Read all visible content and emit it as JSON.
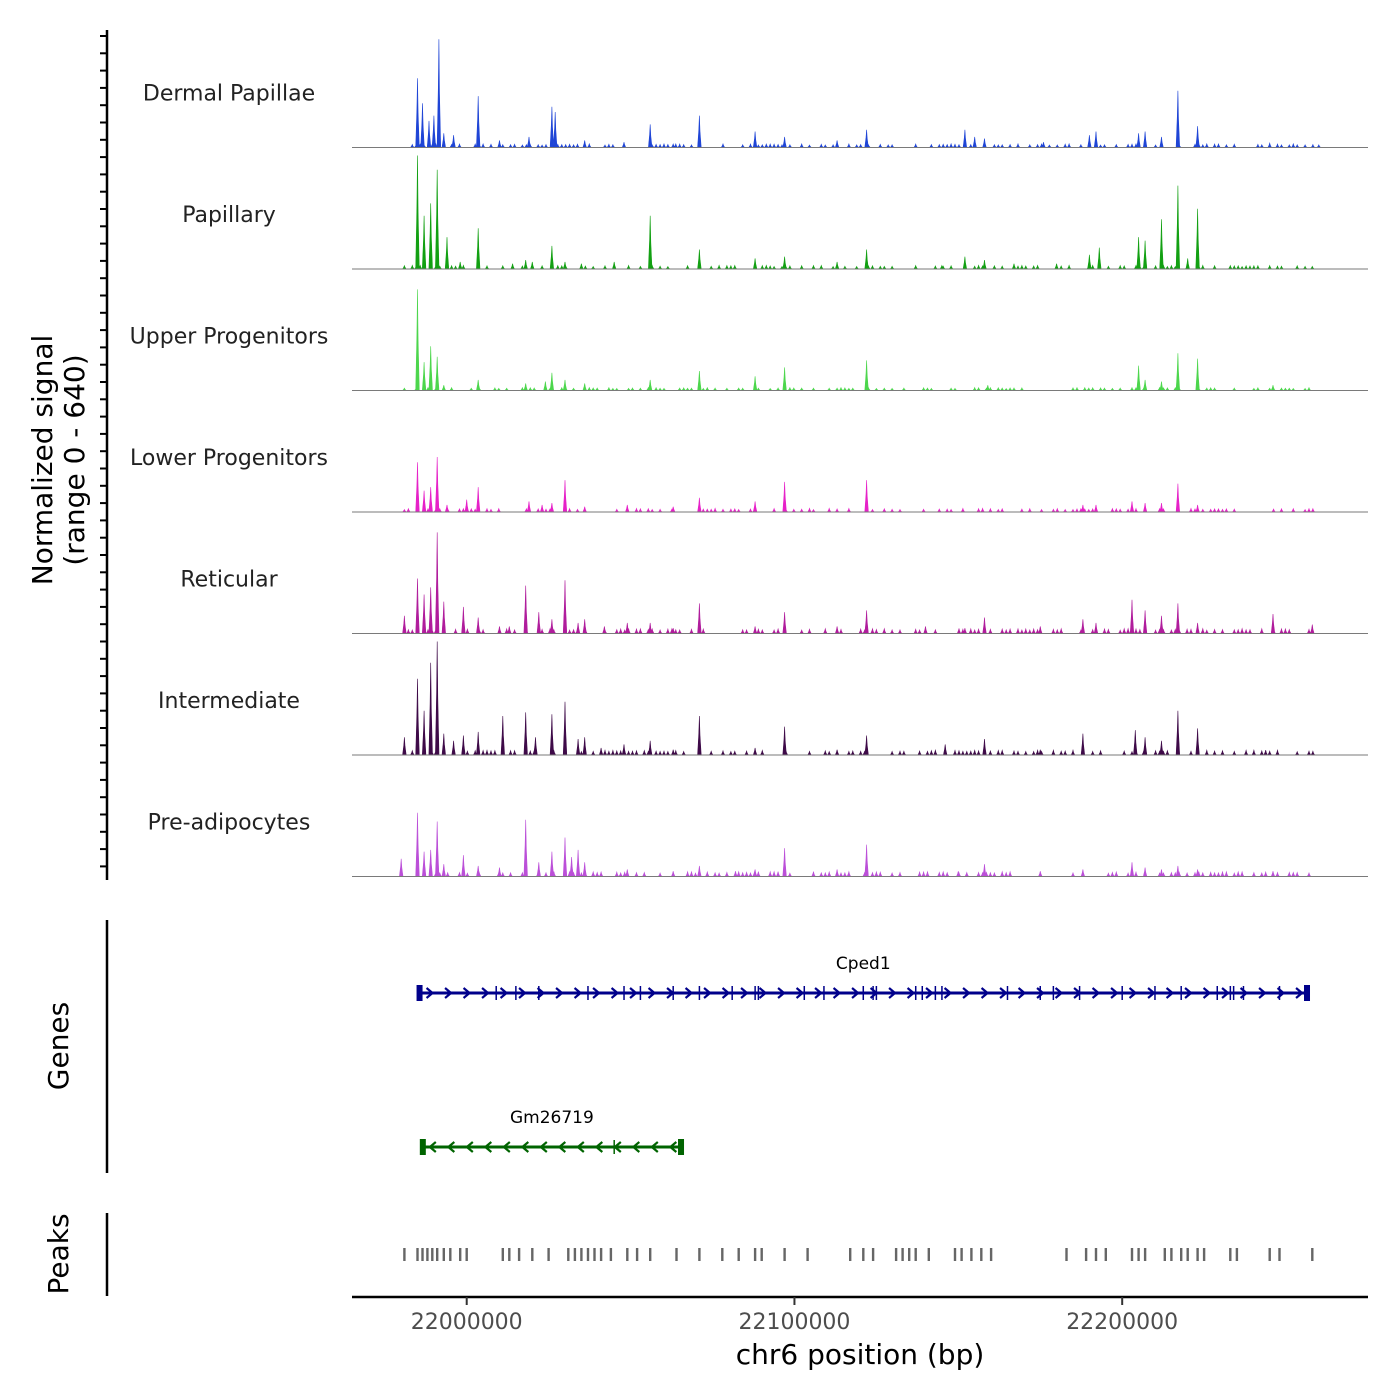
{
  "chart_data": {
    "type": "coverage",
    "chromosome": "chr6",
    "x_range": [
      21965000,
      22275000
    ],
    "xlabel": "chr6 position (bp)",
    "x_ticks": [
      {
        "value": 22000000,
        "label": "22000000"
      },
      {
        "value": 22100000,
        "label": "22100000"
      },
      {
        "value": 22200000,
        "label": "22200000"
      }
    ],
    "coverage": {
      "ylabel": "Normalized signal",
      "ylabel_range": "(range 0 - 640)",
      "y_range": [
        0,
        640
      ],
      "series": [
        {
          "name": "Dermal Papillae",
          "color": "#1f45d6",
          "baseline": 15,
          "peaks": [
            [
              21985000,
              390
            ],
            [
              21986500,
              250
            ],
            [
              21988500,
              150
            ],
            [
              21990000,
              180
            ],
            [
              21991500,
              610
            ],
            [
              21993000,
              80
            ],
            [
              21996000,
              70
            ],
            [
              22003500,
              290
            ],
            [
              22010000,
              40
            ],
            [
              22019000,
              60
            ],
            [
              22026000,
              230
            ],
            [
              22027000,
              200
            ],
            [
              22036000,
              40
            ],
            [
              22048000,
              30
            ],
            [
              22056000,
              130
            ],
            [
              22063000,
              20
            ],
            [
              22071000,
              180
            ],
            [
              22088000,
              90
            ],
            [
              22097000,
              60
            ],
            [
              22113000,
              40
            ],
            [
              22122000,
              100
            ],
            [
              22152000,
              100
            ],
            [
              22155000,
              60
            ],
            [
              22158000,
              50
            ],
            [
              22176000,
              30
            ],
            [
              22190000,
              70
            ],
            [
              22192000,
              90
            ],
            [
              22205000,
              80
            ],
            [
              22207000,
              90
            ],
            [
              22212000,
              60
            ],
            [
              22217000,
              320
            ],
            [
              22223000,
              120
            ],
            [
              22245000,
              25
            ],
            [
              22260000,
              15
            ]
          ]
        },
        {
          "name": "Papillary",
          "color": "#12a012",
          "baseline": 15,
          "peaks": [
            [
              21985000,
              640
            ],
            [
              21987000,
              300
            ],
            [
              21989000,
              370
            ],
            [
              21991000,
              560
            ],
            [
              21994000,
              180
            ],
            [
              21998000,
              40
            ],
            [
              22003500,
              230
            ],
            [
              22014000,
              30
            ],
            [
              22018000,
              50
            ],
            [
              22020000,
              40
            ],
            [
              22026000,
              130
            ],
            [
              22030000,
              40
            ],
            [
              22035000,
              30
            ],
            [
              22045000,
              40
            ],
            [
              22056000,
              300
            ],
            [
              22071000,
              110
            ],
            [
              22088000,
              60
            ],
            [
              22097000,
              70
            ],
            [
              22113000,
              40
            ],
            [
              22122000,
              110
            ],
            [
              22137000,
              20
            ],
            [
              22145000,
              20
            ],
            [
              22152000,
              70
            ],
            [
              22158000,
              50
            ],
            [
              22167000,
              30
            ],
            [
              22180000,
              30
            ],
            [
              22190000,
              80
            ],
            [
              22193000,
              120
            ],
            [
              22205000,
              180
            ],
            [
              22207000,
              160
            ],
            [
              22212000,
              280
            ],
            [
              22217000,
              470
            ],
            [
              22220000,
              60
            ],
            [
              22223000,
              340
            ],
            [
              22233000,
              20
            ],
            [
              22245000,
              20
            ],
            [
              22258000,
              15
            ]
          ]
        },
        {
          "name": "Upper Progenitors",
          "color": "#4cd64c",
          "baseline": 12,
          "peaks": [
            [
              21985000,
              570
            ],
            [
              21987000,
              160
            ],
            [
              21989000,
              250
            ],
            [
              21991000,
              190
            ],
            [
              21993000,
              30
            ],
            [
              22003500,
              60
            ],
            [
              22018000,
              40
            ],
            [
              22024000,
              50
            ],
            [
              22026000,
              100
            ],
            [
              22030000,
              60
            ],
            [
              22036000,
              40
            ],
            [
              22056000,
              60
            ],
            [
              22071000,
              110
            ],
            [
              22088000,
              80
            ],
            [
              22097000,
              130
            ],
            [
              22122000,
              170
            ],
            [
              22159000,
              30
            ],
            [
              22205000,
              140
            ],
            [
              22207000,
              60
            ],
            [
              22212000,
              50
            ],
            [
              22217000,
              210
            ],
            [
              22223000,
              180
            ],
            [
              22246000,
              30
            ]
          ]
        },
        {
          "name": "Lower Progenitors",
          "color": "#e621c8",
          "baseline": 15,
          "peaks": [
            [
              21985000,
              280
            ],
            [
              21987000,
              120
            ],
            [
              21989000,
              140
            ],
            [
              21991000,
              310
            ],
            [
              21994000,
              40
            ],
            [
              22000000,
              70
            ],
            [
              22003500,
              140
            ],
            [
              22019000,
              60
            ],
            [
              22023000,
              40
            ],
            [
              22026000,
              50
            ],
            [
              22030000,
              180
            ],
            [
              22036000,
              30
            ],
            [
              22049000,
              40
            ],
            [
              22063000,
              30
            ],
            [
              22071000,
              80
            ],
            [
              22088000,
              60
            ],
            [
              22097000,
              170
            ],
            [
              22122000,
              180
            ],
            [
              22188000,
              40
            ],
            [
              22192000,
              40
            ],
            [
              22203000,
              60
            ],
            [
              22207000,
              50
            ],
            [
              22212000,
              50
            ],
            [
              22217000,
              160
            ],
            [
              22223000,
              40
            ]
          ]
        },
        {
          "name": "Reticular",
          "color": "#b01c9c",
          "baseline": 20,
          "peaks": [
            [
              21981000,
              100
            ],
            [
              21985000,
              310
            ],
            [
              21987000,
              220
            ],
            [
              21989000,
              260
            ],
            [
              21991000,
              570
            ],
            [
              21993000,
              180
            ],
            [
              21999000,
              150
            ],
            [
              22003500,
              90
            ],
            [
              22010000,
              40
            ],
            [
              22013000,
              40
            ],
            [
              22018000,
              270
            ],
            [
              22022000,
              120
            ],
            [
              22026000,
              80
            ],
            [
              22030000,
              300
            ],
            [
              22034000,
              60
            ],
            [
              22036000,
              80
            ],
            [
              22042000,
              40
            ],
            [
              22049000,
              60
            ],
            [
              22056000,
              60
            ],
            [
              22063000,
              30
            ],
            [
              22071000,
              170
            ],
            [
              22088000,
              40
            ],
            [
              22097000,
              120
            ],
            [
              22113000,
              40
            ],
            [
              22122000,
              130
            ],
            [
              22140000,
              40
            ],
            [
              22152000,
              30
            ],
            [
              22158000,
              90
            ],
            [
              22175000,
              40
            ],
            [
              22188000,
              80
            ],
            [
              22192000,
              60
            ],
            [
              22203000,
              190
            ],
            [
              22207000,
              130
            ],
            [
              22212000,
              100
            ],
            [
              22217000,
              170
            ],
            [
              22223000,
              60
            ],
            [
              22246000,
              110
            ],
            [
              22258000,
              50
            ]
          ]
        },
        {
          "name": "Intermediate",
          "color": "#3e0a48",
          "baseline": 20,
          "peaks": [
            [
              21981000,
              100
            ],
            [
              21985000,
              430
            ],
            [
              21987000,
              250
            ],
            [
              21989000,
              520
            ],
            [
              21991000,
              640
            ],
            [
              21993000,
              120
            ],
            [
              21996000,
              80
            ],
            [
              21999000,
              110
            ],
            [
              22003500,
              130
            ],
            [
              22011000,
              220
            ],
            [
              22018000,
              240
            ],
            [
              22021000,
              100
            ],
            [
              22026000,
              230
            ],
            [
              22030000,
              300
            ],
            [
              22034000,
              90
            ],
            [
              22036000,
              100
            ],
            [
              22041000,
              40
            ],
            [
              22048000,
              60
            ],
            [
              22056000,
              80
            ],
            [
              22063000,
              30
            ],
            [
              22071000,
              220
            ],
            [
              22088000,
              40
            ],
            [
              22097000,
              160
            ],
            [
              22113000,
              30
            ],
            [
              22122000,
              110
            ],
            [
              22146000,
              60
            ],
            [
              22158000,
              90
            ],
            [
              22175000,
              30
            ],
            [
              22188000,
              120
            ],
            [
              22204000,
              140
            ],
            [
              22207000,
              100
            ],
            [
              22212000,
              80
            ],
            [
              22217000,
              250
            ],
            [
              22223000,
              150
            ]
          ]
        },
        {
          "name": "Pre-adipocytes",
          "color": "#bb4fd8",
          "baseline": 20,
          "peaks": [
            [
              21980000,
              100
            ],
            [
              21985000,
              360
            ],
            [
              21987000,
              140
            ],
            [
              21989000,
              150
            ],
            [
              21991000,
              310
            ],
            [
              21993000,
              70
            ],
            [
              21999000,
              120
            ],
            [
              22003500,
              60
            ],
            [
              22010000,
              50
            ],
            [
              22018000,
              320
            ],
            [
              22022000,
              80
            ],
            [
              22026000,
              140
            ],
            [
              22030000,
              220
            ],
            [
              22032000,
              110
            ],
            [
              22034000,
              150
            ],
            [
              22036000,
              80
            ],
            [
              22049000,
              40
            ],
            [
              22063000,
              30
            ],
            [
              22071000,
              60
            ],
            [
              22082000,
              30
            ],
            [
              22088000,
              40
            ],
            [
              22097000,
              160
            ],
            [
              22113000,
              40
            ],
            [
              22122000,
              180
            ],
            [
              22150000,
              30
            ],
            [
              22158000,
              70
            ],
            [
              22175000,
              30
            ],
            [
              22188000,
              40
            ],
            [
              22203000,
              80
            ],
            [
              22207000,
              50
            ],
            [
              22212000,
              40
            ],
            [
              22217000,
              60
            ],
            [
              22223000,
              40
            ],
            [
              22246000,
              30
            ]
          ]
        }
      ]
    },
    "genes": {
      "ylabel": "Genes",
      "items": [
        {
          "name": "Cped1",
          "start": 21985000,
          "end": 22257000,
          "strand": "+",
          "color": "#00008b",
          "exons": [
            21986000,
            22009000,
            22015000,
            22022000,
            22037000,
            22048000,
            22053000,
            22063000,
            22071000,
            22081000,
            22088000,
            22089000,
            22103000,
            22109000,
            22121000,
            22124000,
            22125000,
            22137000,
            22139000,
            22143000,
            22145000,
            22165000,
            22175000,
            22179000,
            22187000,
            22200000,
            22210000,
            22218000,
            22229000,
            22233000,
            22234000,
            22237000,
            22248000
          ]
        },
        {
          "name": "Gm26719",
          "start": 21986000,
          "end": 22066000,
          "strand": "-",
          "color": "#006400",
          "exons": [
            22045000
          ]
        }
      ]
    },
    "peaks": {
      "ylabel": "Peaks",
      "color": "#666666",
      "positions": [
        21981000,
        21985000,
        21986500,
        21988000,
        21989500,
        21991000,
        21993000,
        21995000,
        21998000,
        22000000,
        22011000,
        22013000,
        22016000,
        22020000,
        22025000,
        22031000,
        22033000,
        22035000,
        22037000,
        22039000,
        22041000,
        22044000,
        22049000,
        22052000,
        22056000,
        22064000,
        22071000,
        22078000,
        22083000,
        22088000,
        22090000,
        22097000,
        22104000,
        22117000,
        22121000,
        22124000,
        22131000,
        22133000,
        22135000,
        22137000,
        22141000,
        22149000,
        22151000,
        22154000,
        22157000,
        22160000,
        22183000,
        22189000,
        22192000,
        22195000,
        22203000,
        22205000,
        22207000,
        22213000,
        22215000,
        22218000,
        22220000,
        22223000,
        22225000,
        22233000,
        22235000,
        22245000,
        22248000,
        22258000
      ]
    }
  }
}
